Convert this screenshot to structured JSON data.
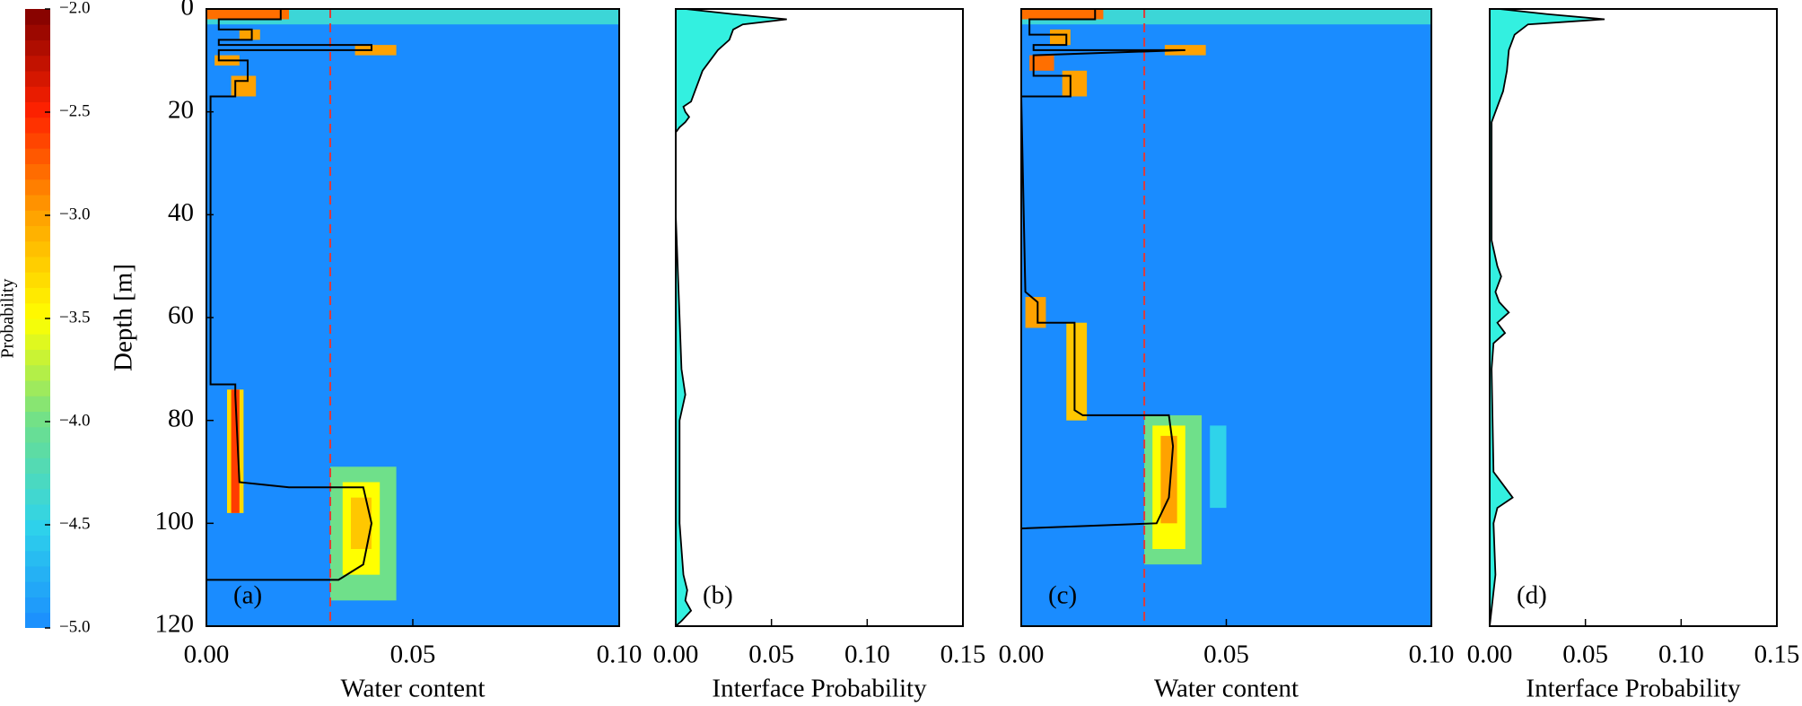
{
  "chart_data": [
    {
      "type": "colorbar",
      "label": "Probability",
      "ylim": [
        -5.0,
        -2.0
      ],
      "yticks": [
        {
          "value": -2.0,
          "label": "−2.0"
        },
        {
          "value": -2.5,
          "label": "−2.5"
        },
        {
          "value": -3.0,
          "label": "−3.0"
        },
        {
          "value": -3.5,
          "label": "−3.5"
        },
        {
          "value": -4.0,
          "label": "−4.0"
        },
        {
          "value": -4.5,
          "label": "−4.5"
        },
        {
          "value": -5.0,
          "label": "−5.0"
        }
      ],
      "colormap": [
        "#1a8cff",
        "#2fd3ea",
        "#6fe08a",
        "#ffff00",
        "#ffa200",
        "#ff2200",
        "#7f0000"
      ]
    },
    {
      "type": "heatmap",
      "panel_label": "(a)",
      "xlabel": "Water content",
      "ylabel": "Depth [m]",
      "xlim": [
        0.0,
        0.1
      ],
      "xticks": [
        {
          "value": 0.0,
          "label": "0.00"
        },
        {
          "value": 0.05,
          "label": "0.05"
        },
        {
          "value": 0.1,
          "label": "0.10"
        }
      ],
      "ylim": [
        120,
        0
      ],
      "yticks": [
        0,
        20,
        40,
        60,
        80,
        100,
        120
      ],
      "reference_x": 0.03,
      "reference_color": "#e03a3a",
      "cells": [
        {
          "x": [
            0.0,
            0.1
          ],
          "y": [
            0,
            3
          ],
          "value": -4.4
        },
        {
          "x": [
            0.0,
            0.02
          ],
          "y": [
            0,
            2
          ],
          "value": -2.8
        },
        {
          "x": [
            0.008,
            0.013
          ],
          "y": [
            4,
            6
          ],
          "value": -3.0
        },
        {
          "x": [
            0.036,
            0.046
          ],
          "y": [
            7,
            9
          ],
          "value": -3.0
        },
        {
          "x": [
            0.002,
            0.008
          ],
          "y": [
            9,
            11
          ],
          "value": -3.0
        },
        {
          "x": [
            0.006,
            0.012
          ],
          "y": [
            13,
            17
          ],
          "value": -3.0
        },
        {
          "x": [
            0.005,
            0.009
          ],
          "y": [
            74,
            98
          ],
          "value": -3.3
        },
        {
          "x": [
            0.006,
            0.008
          ],
          "y": [
            74,
            98
          ],
          "value": -2.6
        },
        {
          "x": [
            0.03,
            0.046
          ],
          "y": [
            89,
            115
          ],
          "value": -4.0
        },
        {
          "x": [
            0.033,
            0.042
          ],
          "y": [
            92,
            110
          ],
          "value": -3.5
        },
        {
          "x": [
            0.035,
            0.04
          ],
          "y": [
            95,
            105
          ],
          "value": -3.2
        }
      ],
      "line": {
        "color": "#000000",
        "water_content": [
          0.018,
          0.018,
          0.003,
          0.003,
          0.011,
          0.011,
          0.003,
          0.003,
          0.04,
          0.04,
          0.003,
          0.003,
          0.01,
          0.01,
          0.007,
          0.007,
          0.001,
          0.001,
          0.007,
          0.007,
          0.008,
          0.02,
          0.038,
          0.04,
          0.038,
          0.032,
          0.0
        ],
        "depth": [
          0,
          2,
          2,
          4,
          4,
          6,
          6,
          7,
          7,
          8,
          8,
          10,
          10,
          14,
          14,
          17,
          17,
          73,
          73,
          75,
          92,
          93,
          93,
          100,
          108,
          111,
          111
        ]
      }
    },
    {
      "type": "area",
      "panel_label": "(b)",
      "xlabel": "Interface Probability",
      "color": "#33f0e0",
      "xlim": [
        0.0,
        0.15
      ],
      "xticks": [
        {
          "value": 0.0,
          "label": "0.00"
        },
        {
          "value": 0.05,
          "label": "0.05"
        },
        {
          "value": 0.1,
          "label": "0.10"
        },
        {
          "value": 0.15,
          "label": "0.15"
        }
      ],
      "ylim": [
        120,
        0
      ],
      "depth": [
        0,
        1,
        2,
        3,
        4,
        6,
        8,
        10,
        12,
        14,
        16,
        18,
        19,
        20,
        21,
        22,
        23,
        24,
        40,
        60,
        70,
        75,
        80,
        100,
        110,
        113,
        115,
        117,
        119,
        120
      ],
      "values": [
        0.005,
        0.03,
        0.058,
        0.035,
        0.03,
        0.028,
        0.022,
        0.018,
        0.014,
        0.012,
        0.01,
        0.008,
        0.004,
        0.005,
        0.007,
        0.005,
        0.002,
        0,
        0,
        0.002,
        0.003,
        0.005,
        0.002,
        0.002,
        0.004,
        0.006,
        0.005,
        0.008,
        0.003,
        0
      ]
    },
    {
      "type": "heatmap",
      "panel_label": "(c)",
      "xlabel": "Water content",
      "xlim": [
        0.0,
        0.1
      ],
      "xticks": [
        {
          "value": 0.0,
          "label": "0.00"
        },
        {
          "value": 0.05,
          "label": "0.05"
        },
        {
          "value": 0.1,
          "label": "0.10"
        }
      ],
      "ylim": [
        120,
        0
      ],
      "reference_x": 0.03,
      "reference_color": "#e03a3a",
      "cells": [
        {
          "x": [
            0.0,
            0.1
          ],
          "y": [
            0,
            3
          ],
          "value": -4.4
        },
        {
          "x": [
            0.0,
            0.02
          ],
          "y": [
            0,
            2
          ],
          "value": -2.8
        },
        {
          "x": [
            0.007,
            0.012
          ],
          "y": [
            4,
            7
          ],
          "value": -3.0
        },
        {
          "x": [
            0.035,
            0.045
          ],
          "y": [
            7,
            9
          ],
          "value": -3.0
        },
        {
          "x": [
            0.002,
            0.008
          ],
          "y": [
            9,
            12
          ],
          "value": -2.8
        },
        {
          "x": [
            0.01,
            0.016
          ],
          "y": [
            12,
            17
          ],
          "value": -3.0
        },
        {
          "x": [
            0.001,
            0.006
          ],
          "y": [
            56,
            62
          ],
          "value": -3.0
        },
        {
          "x": [
            0.011,
            0.016
          ],
          "y": [
            61,
            80
          ],
          "value": -3.2
        },
        {
          "x": [
            0.03,
            0.044
          ],
          "y": [
            79,
            108
          ],
          "value": -4.0
        },
        {
          "x": [
            0.032,
            0.04
          ],
          "y": [
            81,
            105
          ],
          "value": -3.5
        },
        {
          "x": [
            0.034,
            0.038
          ],
          "y": [
            83,
            100
          ],
          "value": -3.0
        },
        {
          "x": [
            0.046,
            0.05
          ],
          "y": [
            81,
            97
          ],
          "value": -4.5
        }
      ],
      "line": {
        "color": "#000000",
        "water_content": [
          0.018,
          0.018,
          0.002,
          0.002,
          0.011,
          0.011,
          0.003,
          0.003,
          0.04,
          0.003,
          0.003,
          0.012,
          0.012,
          0.0,
          0.001,
          0.004,
          0.004,
          0.013,
          0.013,
          0.015,
          0.036,
          0.037,
          0.036,
          0.033,
          0.0
        ],
        "depth": [
          0,
          2,
          2,
          5,
          5,
          7,
          7,
          8,
          8,
          9,
          13,
          13,
          17,
          17,
          55,
          57,
          61,
          61,
          78,
          79,
          79,
          85,
          95,
          100,
          101
        ]
      }
    },
    {
      "type": "area",
      "panel_label": "(d)",
      "xlabel": "Interface Probability",
      "color": "#33f0e0",
      "xlim": [
        0.0,
        0.15
      ],
      "xticks": [
        {
          "value": 0.0,
          "label": "0.00"
        },
        {
          "value": 0.05,
          "label": "0.05"
        },
        {
          "value": 0.1,
          "label": "0.10"
        },
        {
          "value": 0.15,
          "label": "0.15"
        }
      ],
      "ylim": [
        120,
        0
      ],
      "depth": [
        0,
        1,
        2,
        3,
        5,
        8,
        12,
        16,
        18,
        22,
        45,
        50,
        52,
        55,
        57,
        59,
        61,
        63,
        65,
        70,
        90,
        93,
        95,
        97,
        100,
        110,
        120
      ],
      "values": [
        0.005,
        0.03,
        0.06,
        0.02,
        0.013,
        0.01,
        0.009,
        0.007,
        0.005,
        0.001,
        0.001,
        0.004,
        0.006,
        0.003,
        0.005,
        0.01,
        0.004,
        0.008,
        0.002,
        0.001,
        0.002,
        0.008,
        0.012,
        0.004,
        0.002,
        0.003,
        0
      ]
    }
  ]
}
